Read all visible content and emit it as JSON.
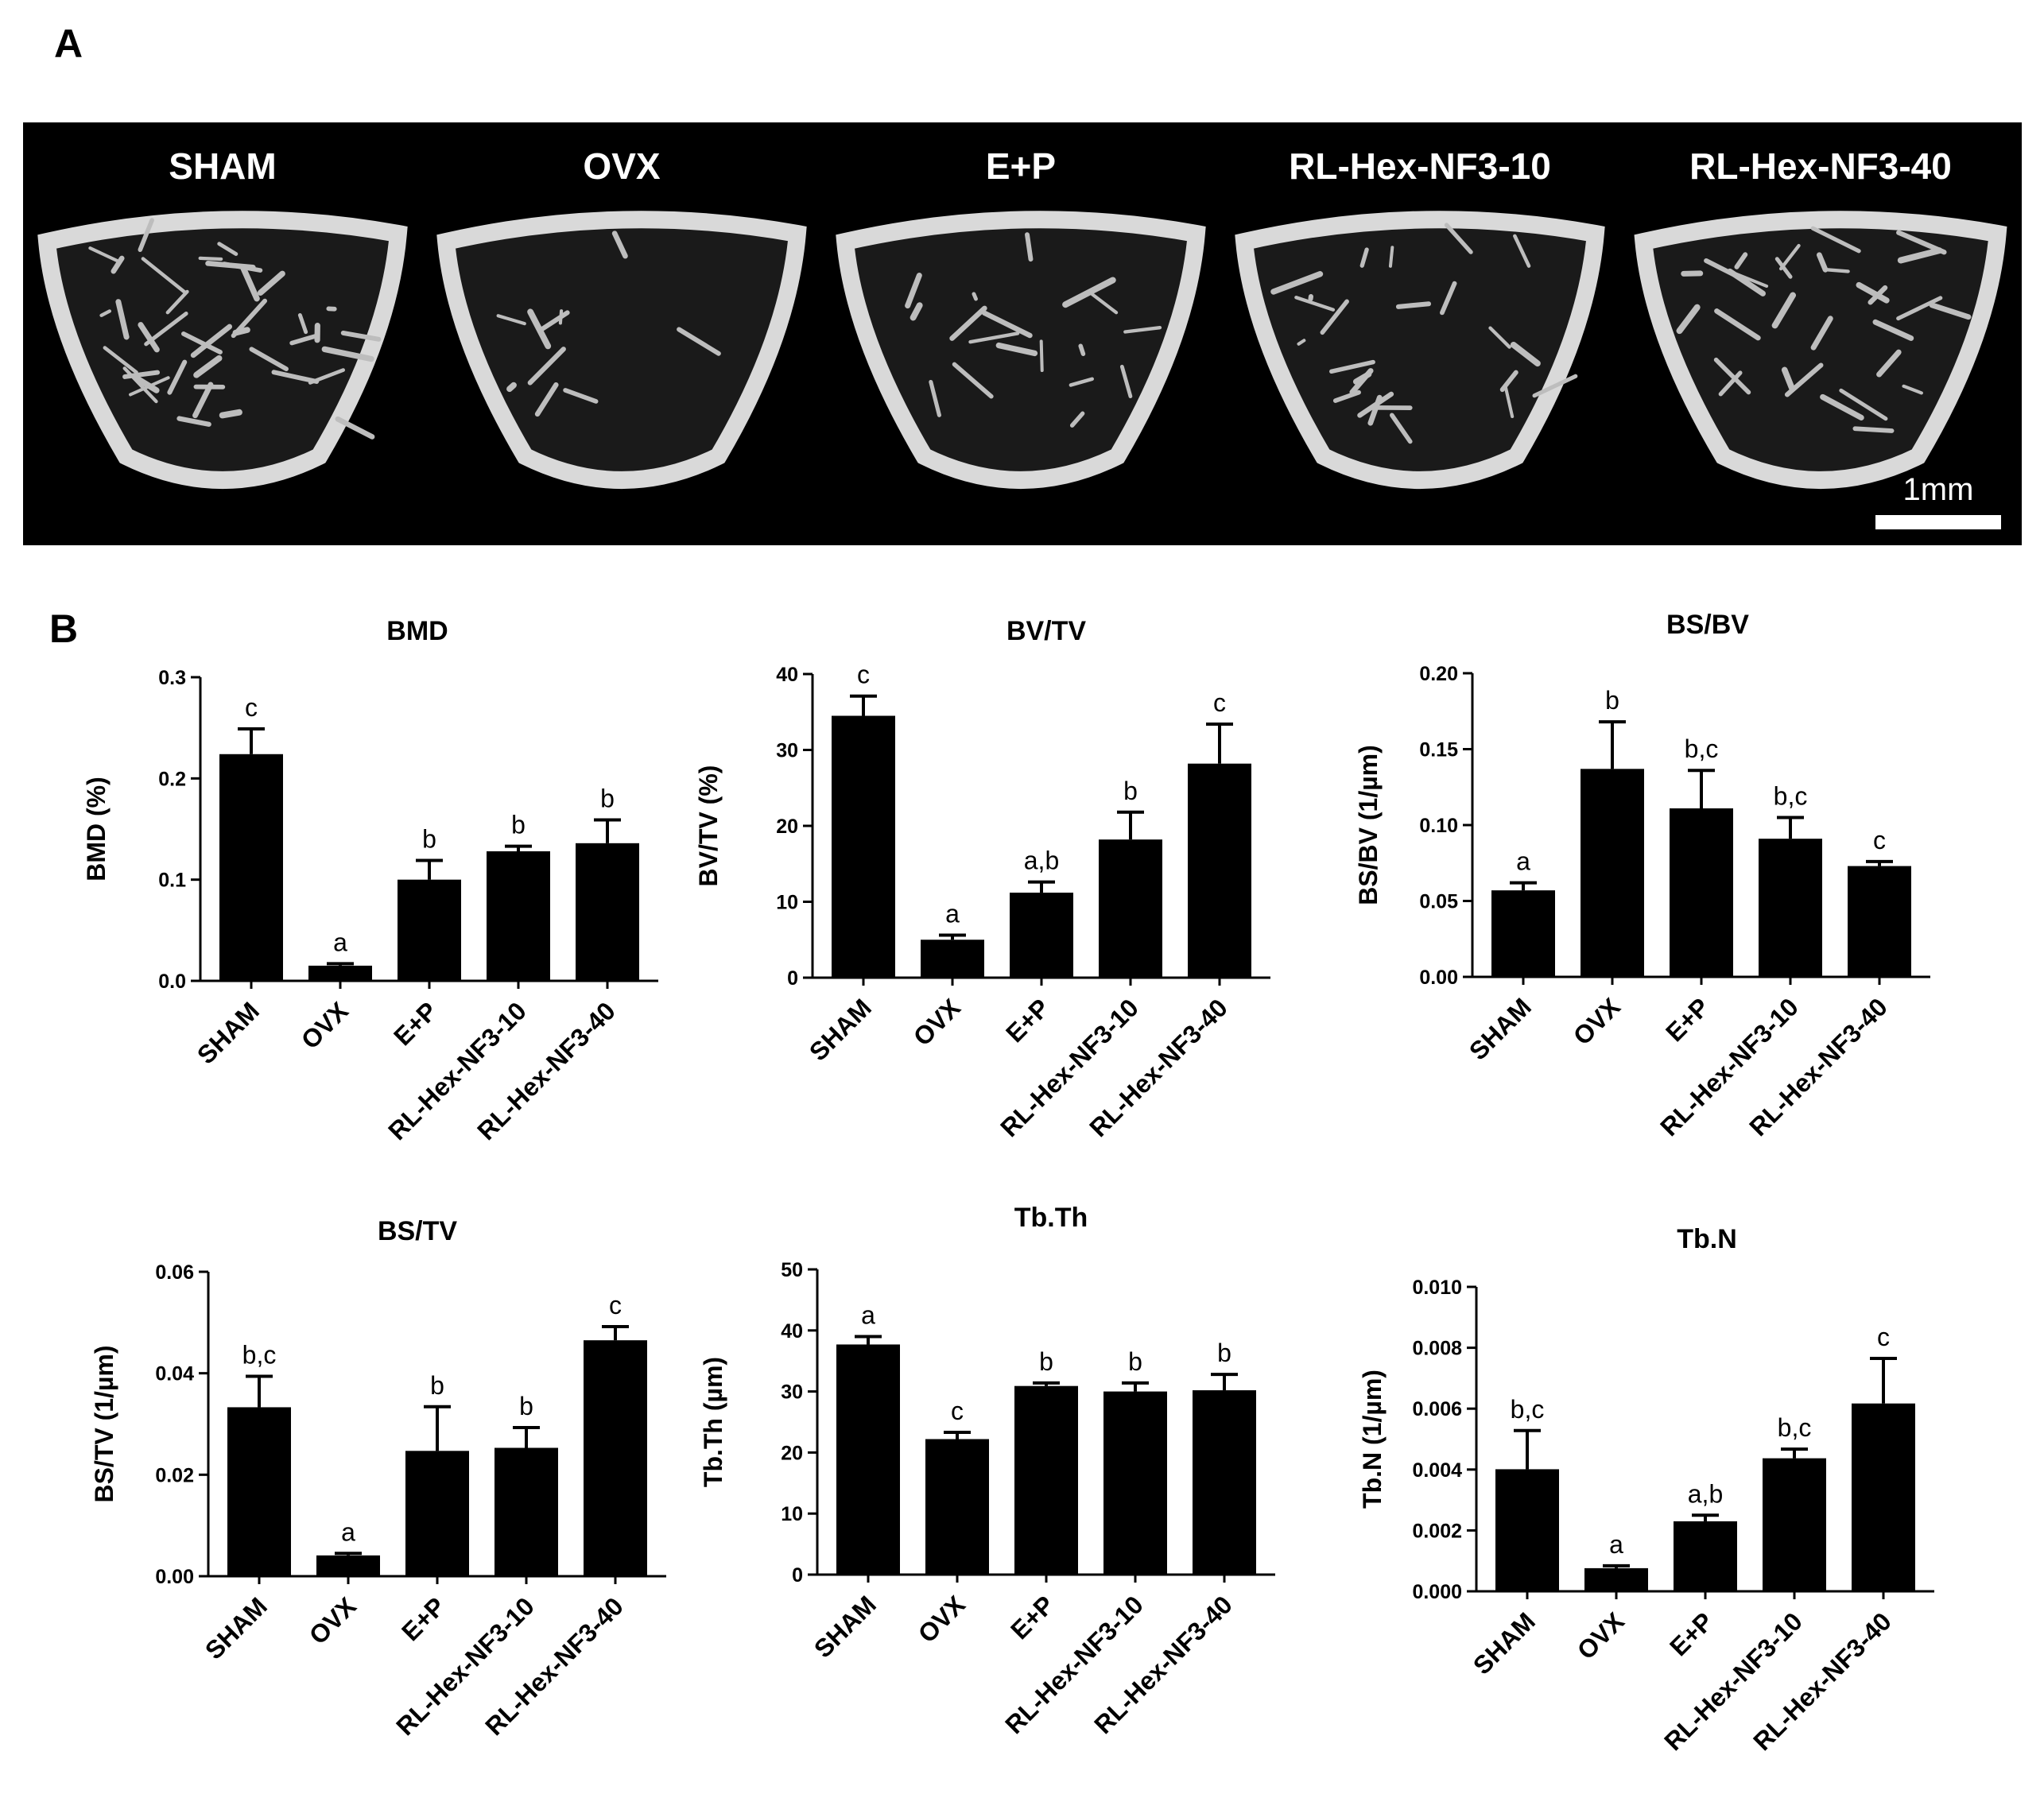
{
  "panels": {
    "a": "A",
    "b": "B"
  },
  "micro_ct": {
    "groups": [
      "SHAM",
      "OVX",
      "E+P",
      "RL-Hex-NF3-10",
      "RL-Hex-NF3-40"
    ],
    "scale_bar": "1mm"
  },
  "chart_data": [
    {
      "type": "bar",
      "title": "BMD",
      "ylabel": "BMD (%)",
      "ylim": [
        0,
        0.3
      ],
      "yticks": [
        "0.0",
        "0.1",
        "0.2",
        "0.3"
      ],
      "categories": [
        "SHAM",
        "OVX",
        "E+P",
        "RL-Hex-NF3-10",
        "RL-Hex-NF3-40"
      ],
      "values": [
        0.224,
        0.015,
        0.1,
        0.128,
        0.136
      ],
      "errors": [
        0.025,
        0.002,
        0.019,
        0.005,
        0.023
      ],
      "labels": [
        "c",
        "a",
        "b",
        "b",
        "b"
      ]
    },
    {
      "type": "bar",
      "title": "BV/TV",
      "ylabel": "BV/TV (%)",
      "ylim": [
        0,
        40
      ],
      "yticks": [
        "0",
        "10",
        "20",
        "30",
        "40"
      ],
      "categories": [
        "SHAM",
        "OVX",
        "E+P",
        "RL-Hex-NF3-10",
        "RL-Hex-NF3-40"
      ],
      "values": [
        34.5,
        5.0,
        11.2,
        18.2,
        28.2
      ],
      "errors": [
        2.6,
        0.6,
        1.4,
        3.6,
        5.2
      ],
      "labels": [
        "c",
        "a",
        "a,b",
        "b",
        "c"
      ]
    },
    {
      "type": "bar",
      "title": "BS/BV",
      "ylabel": "BS/BV  (1/µm)",
      "ylim": [
        0,
        0.2
      ],
      "yticks": [
        "0.00",
        "0.05",
        "0.10",
        "0.15",
        "0.20"
      ],
      "categories": [
        "SHAM",
        "OVX",
        "E+P",
        "RL-Hex-NF3-10",
        "RL-Hex-NF3-40"
      ],
      "values": [
        0.057,
        0.137,
        0.111,
        0.091,
        0.073
      ],
      "errors": [
        0.005,
        0.031,
        0.025,
        0.014,
        0.003
      ],
      "labels": [
        "a",
        "b",
        "b,c",
        "b,c",
        "c"
      ]
    },
    {
      "type": "bar",
      "title": "BS/TV",
      "ylabel": "BS/TV (1/µm)",
      "ylim": [
        0,
        0.06
      ],
      "yticks": [
        "0.00",
        "0.02",
        "0.04",
        "0.06"
      ],
      "categories": [
        "SHAM",
        "OVX",
        "E+P",
        "RL-Hex-NF3-10",
        "RL-Hex-NF3-40"
      ],
      "values": [
        0.0333,
        0.0041,
        0.0247,
        0.0253,
        0.0465
      ],
      "errors": [
        0.0061,
        0.0004,
        0.0087,
        0.004,
        0.0027
      ],
      "labels": [
        "b,c",
        "a",
        "b",
        "b",
        "c"
      ]
    },
    {
      "type": "bar",
      "title": "Tb.Th",
      "ylabel": "Tb.Th (µm)",
      "ylim": [
        0,
        50
      ],
      "yticks": [
        "0",
        "10",
        "20",
        "30",
        "40",
        "50"
      ],
      "categories": [
        "SHAM",
        "OVX",
        "E+P",
        "RL-Hex-NF3-10",
        "RL-Hex-NF3-40"
      ],
      "values": [
        37.7,
        22.2,
        30.9,
        30.0,
        30.2
      ],
      "errors": [
        1.3,
        1.1,
        0.5,
        1.4,
        2.6
      ],
      "labels": [
        "a",
        "c",
        "b",
        "b",
        "b"
      ]
    },
    {
      "type": "bar",
      "title": "Tb.N",
      "ylabel": "Tb.N  (1/µm)",
      "ylim": [
        0,
        0.01
      ],
      "yticks": [
        "0.000",
        "0.002",
        "0.004",
        "0.006",
        "0.008",
        "0.010"
      ],
      "categories": [
        "SHAM",
        "OVX",
        "E+P",
        "RL-Hex-NF3-10",
        "RL-Hex-NF3-40"
      ],
      "values": [
        0.00401,
        0.00076,
        0.0023,
        0.00437,
        0.00617
      ],
      "errors": [
        0.00127,
        8e-05,
        0.0002,
        0.0003,
        0.00148
      ],
      "labels": [
        "b,c",
        "a",
        "a,b",
        "b,c",
        "c"
      ]
    }
  ]
}
